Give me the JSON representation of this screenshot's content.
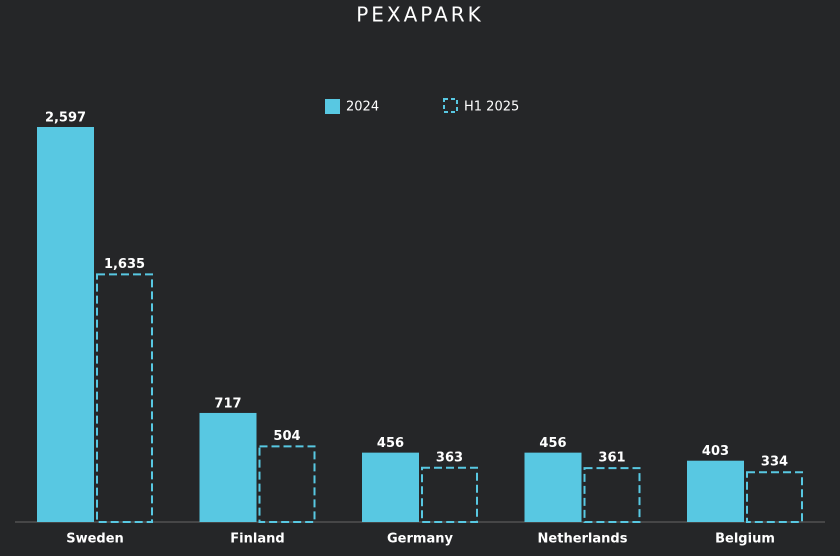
{
  "chart_data": {
    "type": "bar",
    "title": "PEXAPARK",
    "categories": [
      "Sweden",
      "Finland",
      "Germany",
      "Netherlands",
      "Belgium"
    ],
    "series": [
      {
        "name": "2024",
        "color": "#58c8e2",
        "style": "solid",
        "values": [
          2597,
          717,
          456,
          456,
          403
        ],
        "value_labels": [
          "2,597",
          "717",
          "456",
          "456",
          "403"
        ]
      },
      {
        "name": "H1 2025",
        "color": "#58c8e2",
        "style": "dashed",
        "values": [
          1635,
          504,
          363,
          361,
          334
        ],
        "value_labels": [
          "1,635",
          "504",
          "363",
          "361",
          "334"
        ]
      }
    ]
  }
}
